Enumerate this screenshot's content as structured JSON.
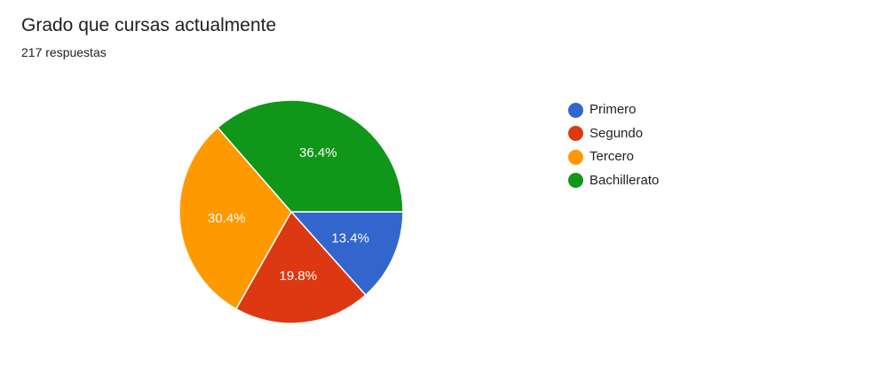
{
  "header": {
    "title": "Grado que cursas actualmente",
    "subtitle": "217 respuestas"
  },
  "chart_data": {
    "type": "pie",
    "title": "Grado que cursas actualmente",
    "total_responses": 217,
    "categories": [
      "Primero",
      "Segundo",
      "Tercero",
      "Bachillerato"
    ],
    "values": [
      13.4,
      19.8,
      30.4,
      36.4
    ],
    "labels": [
      "13.4%",
      "19.8%",
      "30.4%",
      "36.4%"
    ],
    "colors": [
      "#3366cc",
      "#dc3912",
      "#ff9900",
      "#109618"
    ],
    "legend_position": "right"
  }
}
